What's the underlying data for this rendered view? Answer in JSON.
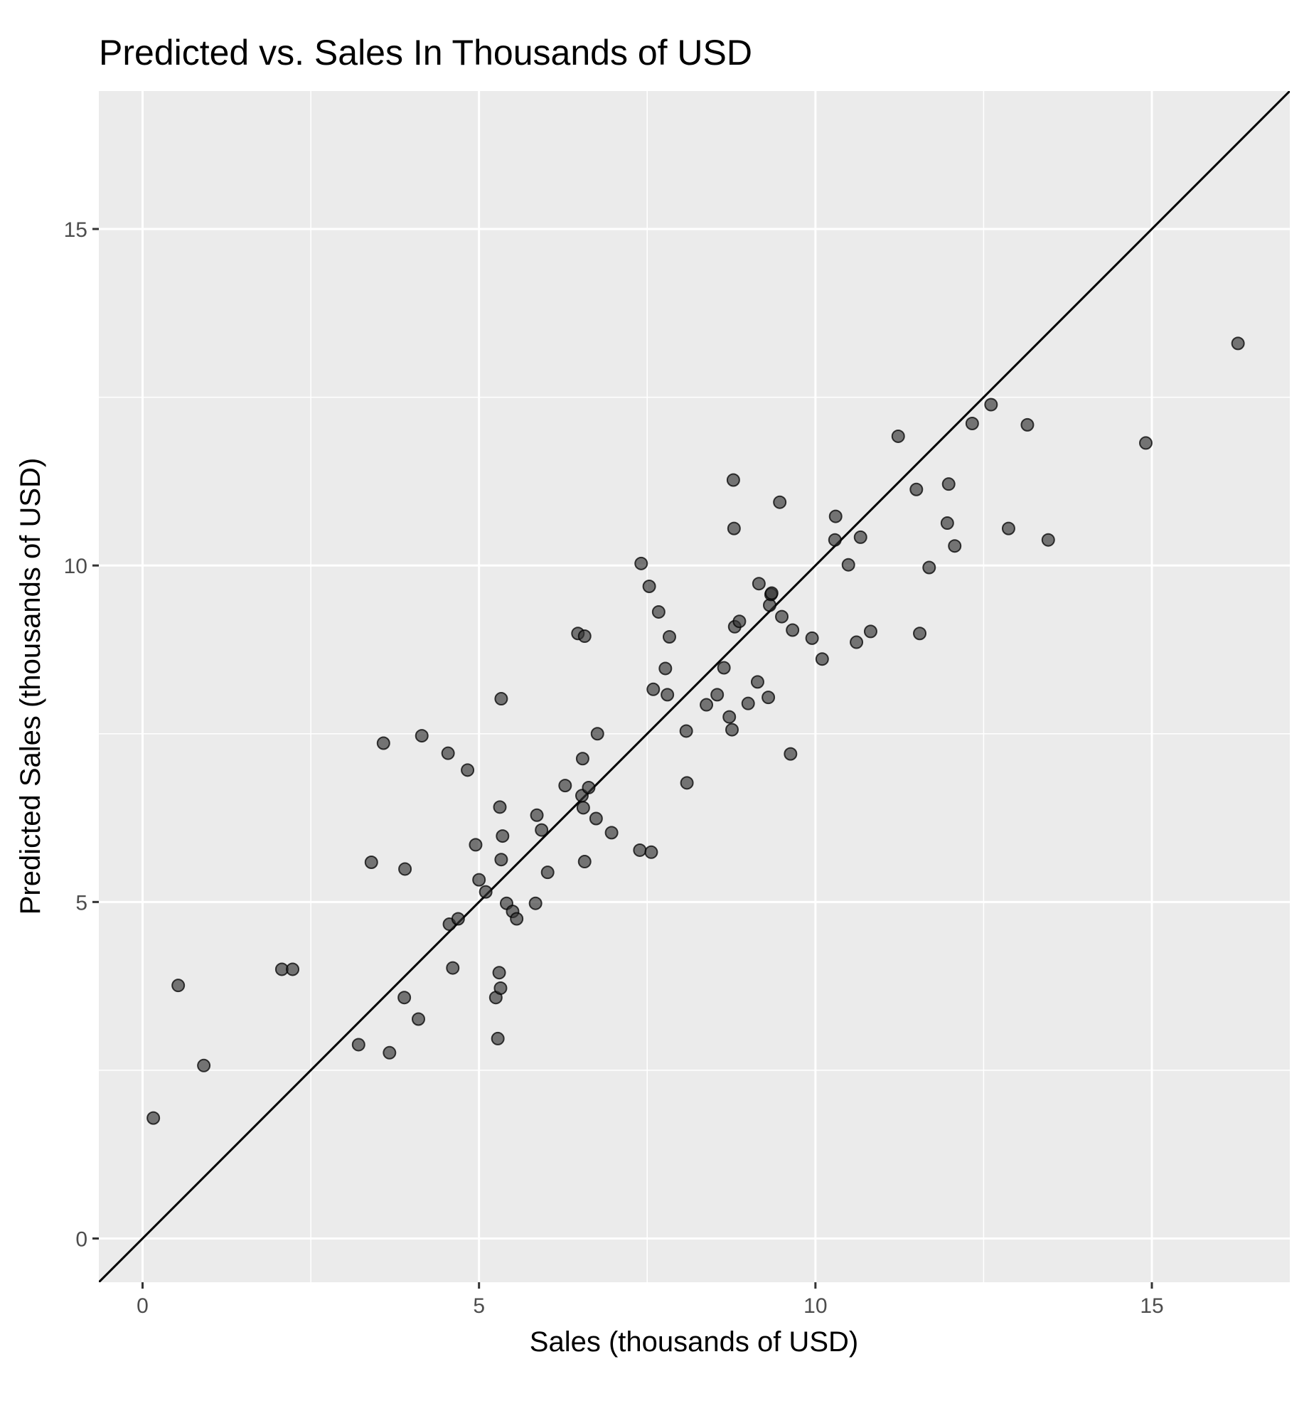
{
  "chart_data": {
    "type": "scatter",
    "title": "Predicted vs. Sales In Thousands of USD",
    "xlabel": "Sales (thousands of USD)",
    "ylabel": "Predicted Sales (thousands of USD)",
    "xlim": [
      -0.65,
      17.05
    ],
    "ylim": [
      -0.65,
      17.05
    ],
    "x_ticks": [
      0,
      5,
      10,
      15
    ],
    "y_ticks": [
      0,
      5,
      10,
      15
    ],
    "grid": true,
    "reference_line": {
      "slope": 1,
      "intercept": 0
    },
    "colors": {
      "panel": "#ebebeb",
      "grid": "#ffffff",
      "point": "#333333",
      "line": "#000000"
    },
    "points": [
      [
        0.16,
        1.79
      ],
      [
        0.53,
        3.76
      ],
      [
        0.91,
        2.57
      ],
      [
        2.07,
        4.0
      ],
      [
        2.23,
        4.0
      ],
      [
        3.21,
        2.88
      ],
      [
        3.4,
        5.59
      ],
      [
        3.58,
        7.36
      ],
      [
        3.67,
        2.76
      ],
      [
        3.89,
        3.58
      ],
      [
        3.9,
        5.49
      ],
      [
        4.1,
        3.26
      ],
      [
        4.15,
        7.47
      ],
      [
        4.54,
        7.21
      ],
      [
        4.56,
        4.67
      ],
      [
        4.61,
        4.02
      ],
      [
        4.69,
        4.75
      ],
      [
        4.83,
        6.96
      ],
      [
        4.95,
        5.85
      ],
      [
        5.0,
        5.33
      ],
      [
        5.1,
        5.15
      ],
      [
        5.25,
        3.58
      ],
      [
        5.28,
        2.97
      ],
      [
        5.3,
        3.95
      ],
      [
        5.31,
        6.41
      ],
      [
        5.32,
        3.72
      ],
      [
        5.33,
        5.63
      ],
      [
        5.33,
        8.02
      ],
      [
        5.35,
        5.98
      ],
      [
        5.41,
        4.98
      ],
      [
        5.5,
        4.86
      ],
      [
        5.56,
        4.75
      ],
      [
        5.84,
        4.98
      ],
      [
        5.86,
        6.29
      ],
      [
        5.93,
        6.07
      ],
      [
        6.02,
        5.44
      ],
      [
        6.28,
        6.73
      ],
      [
        6.47,
        8.99
      ],
      [
        6.53,
        6.58
      ],
      [
        6.54,
        7.13
      ],
      [
        6.55,
        6.4
      ],
      [
        6.57,
        5.6
      ],
      [
        6.57,
        8.95
      ],
      [
        6.63,
        6.7
      ],
      [
        6.74,
        6.24
      ],
      [
        6.76,
        7.5
      ],
      [
        6.97,
        6.03
      ],
      [
        7.39,
        5.77
      ],
      [
        7.41,
        10.03
      ],
      [
        7.53,
        9.69
      ],
      [
        7.56,
        5.74
      ],
      [
        7.59,
        8.16
      ],
      [
        7.67,
        9.31
      ],
      [
        7.77,
        8.47
      ],
      [
        7.8,
        8.08
      ],
      [
        7.83,
        8.94
      ],
      [
        8.08,
        7.54
      ],
      [
        8.09,
        6.77
      ],
      [
        8.38,
        7.93
      ],
      [
        8.54,
        8.08
      ],
      [
        8.64,
        8.48
      ],
      [
        8.72,
        7.75
      ],
      [
        8.76,
        7.56
      ],
      [
        8.78,
        11.27
      ],
      [
        8.79,
        10.55
      ],
      [
        8.8,
        9.09
      ],
      [
        8.87,
        9.17
      ],
      [
        9.0,
        7.95
      ],
      [
        9.14,
        8.27
      ],
      [
        9.16,
        9.73
      ],
      [
        9.3,
        8.04
      ],
      [
        9.32,
        9.41
      ],
      [
        9.34,
        9.57
      ],
      [
        9.35,
        9.59
      ],
      [
        9.47,
        10.94
      ],
      [
        9.5,
        9.24
      ],
      [
        9.63,
        7.2
      ],
      [
        9.66,
        9.04
      ],
      [
        9.95,
        8.92
      ],
      [
        10.1,
        8.61
      ],
      [
        10.29,
        10.38
      ],
      [
        10.3,
        10.73
      ],
      [
        10.49,
        10.01
      ],
      [
        10.61,
        8.86
      ],
      [
        10.67,
        10.42
      ],
      [
        10.82,
        9.02
      ],
      [
        11.23,
        11.92
      ],
      [
        11.5,
        11.13
      ],
      [
        11.55,
        8.99
      ],
      [
        11.69,
        9.97
      ],
      [
        11.96,
        10.63
      ],
      [
        11.98,
        11.21
      ],
      [
        12.07,
        10.29
      ],
      [
        12.33,
        12.11
      ],
      [
        12.61,
        12.39
      ],
      [
        12.87,
        10.55
      ],
      [
        13.15,
        12.09
      ],
      [
        13.46,
        10.38
      ],
      [
        14.91,
        11.82
      ],
      [
        16.28,
        13.3
      ]
    ]
  }
}
